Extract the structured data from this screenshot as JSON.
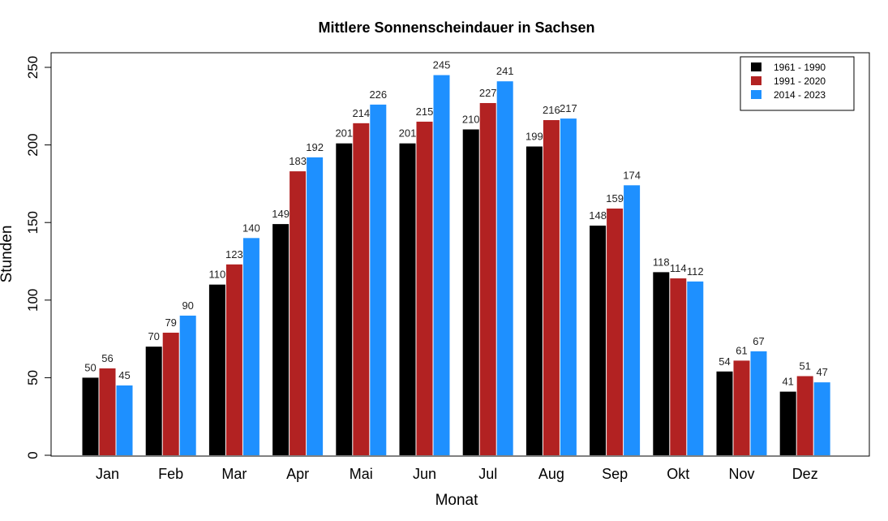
{
  "chart_data": {
    "type": "bar",
    "title": "Mittlere Sonnenscheindauer in Sachsen",
    "xlabel": "Monat",
    "ylabel": "Stunden",
    "ylim": [
      0,
      250
    ],
    "yticks": [
      0,
      50,
      100,
      150,
      200,
      250
    ],
    "grid": false,
    "legend_position": "top-right",
    "categories": [
      "Jan",
      "Feb",
      "Mar",
      "Apr",
      "Mai",
      "Jun",
      "Jul",
      "Aug",
      "Sep",
      "Okt",
      "Nov",
      "Dez"
    ],
    "series": [
      {
        "name": "1961 - 1990",
        "color": "#000000",
        "values": [
          50,
          70,
          110,
          149,
          201,
          201,
          210,
          199,
          148,
          118,
          54,
          41
        ]
      },
      {
        "name": "1991 - 2020",
        "color": "#b22222",
        "values": [
          56,
          79,
          123,
          183,
          214,
          215,
          227,
          216,
          159,
          114,
          61,
          51
        ]
      },
      {
        "name": "2014 - 2023",
        "color": "#1e90ff",
        "values": [
          45,
          90,
          140,
          192,
          226,
          245,
          241,
          217,
          174,
          112,
          67,
          47
        ]
      }
    ]
  }
}
